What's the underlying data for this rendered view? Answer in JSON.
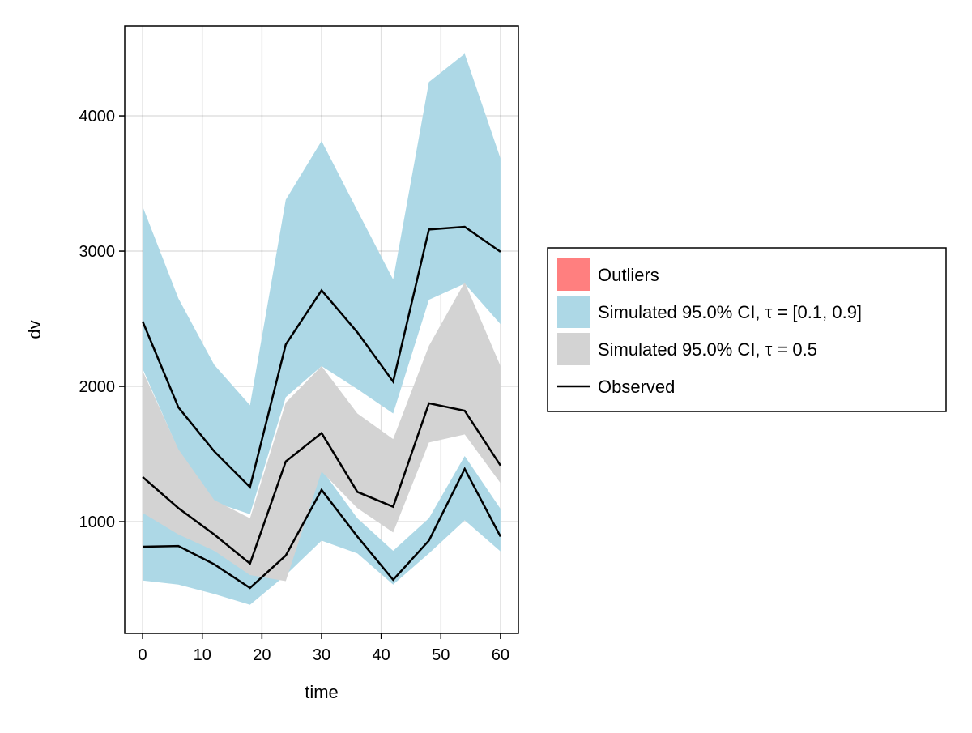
{
  "chart_data": {
    "type": "area",
    "title": "",
    "xlabel": "time",
    "ylabel": "dv",
    "xlim": [
      -3,
      63
    ],
    "ylim": [
      174,
      4665
    ],
    "xticks": [
      0,
      10,
      20,
      30,
      40,
      50,
      60
    ],
    "yticks": [
      1000,
      2000,
      3000,
      4000
    ],
    "grid": true,
    "legend_position": "right",
    "x": [
      0,
      6,
      12,
      18,
      24,
      30,
      36,
      42,
      48,
      54,
      60
    ],
    "bands": [
      {
        "name": "Simulated 95.0% CI, τ = [0.1, 0.9]",
        "color": "#add8e6",
        "lower": [
          2130,
          1530,
          1145,
          1055,
          1920,
          2150,
          1980,
          1800,
          2640,
          2760,
          2460
        ],
        "upper": [
          3330,
          2650,
          2160,
          1860,
          3380,
          3815,
          3300,
          2790,
          4250,
          4460,
          3685
        ]
      },
      {
        "name": "Simulated 95.0% CI, τ = [0.1, 0.9]",
        "color": "#add8e6",
        "lower": [
          565,
          535,
          465,
          385,
          605,
          860,
          765,
          535,
          765,
          1010,
          780
        ],
        "upper": [
          1065,
          935,
          785,
          725,
          815,
          1385,
          1025,
          785,
          1025,
          1485,
          1095
        ]
      },
      {
        "name": "Simulated 95.0% CI, τ = 0.5",
        "color": "#d3d3d3",
        "lower": [
          1065,
          905,
          785,
          605,
          560,
          1370,
          1100,
          920,
          1585,
          1645,
          1285
        ],
        "upper": [
          2115,
          1535,
          1160,
          1025,
          1880,
          2150,
          1800,
          1610,
          2300,
          2770,
          2150
        ]
      }
    ],
    "series": [
      {
        "name": "Observed",
        "color": "#000000",
        "values": [
          2480,
          1845,
          1520,
          1255,
          2310,
          2710,
          2400,
          2035,
          3160,
          3180,
          2995
        ]
      },
      {
        "name": "Observed",
        "color": "#000000",
        "values": [
          1330,
          1100,
          905,
          690,
          1445,
          1655,
          1220,
          1110,
          1875,
          1820,
          1415
        ]
      },
      {
        "name": "Observed",
        "color": "#000000",
        "values": [
          815,
          820,
          685,
          510,
          750,
          1235,
          890,
          570,
          860,
          1390,
          890
        ]
      }
    ],
    "legend": [
      {
        "label": "Outliers",
        "color": "#ff7f7f",
        "kind": "patch"
      },
      {
        "label": "Simulated 95.0% CI, τ = [0.1, 0.9]",
        "color": "#add8e6",
        "kind": "patch"
      },
      {
        "label": "Simulated 95.0% CI, τ = 0.5",
        "color": "#d3d3d3",
        "kind": "patch"
      },
      {
        "label": "Observed",
        "color": "#000000",
        "kind": "line"
      }
    ]
  }
}
